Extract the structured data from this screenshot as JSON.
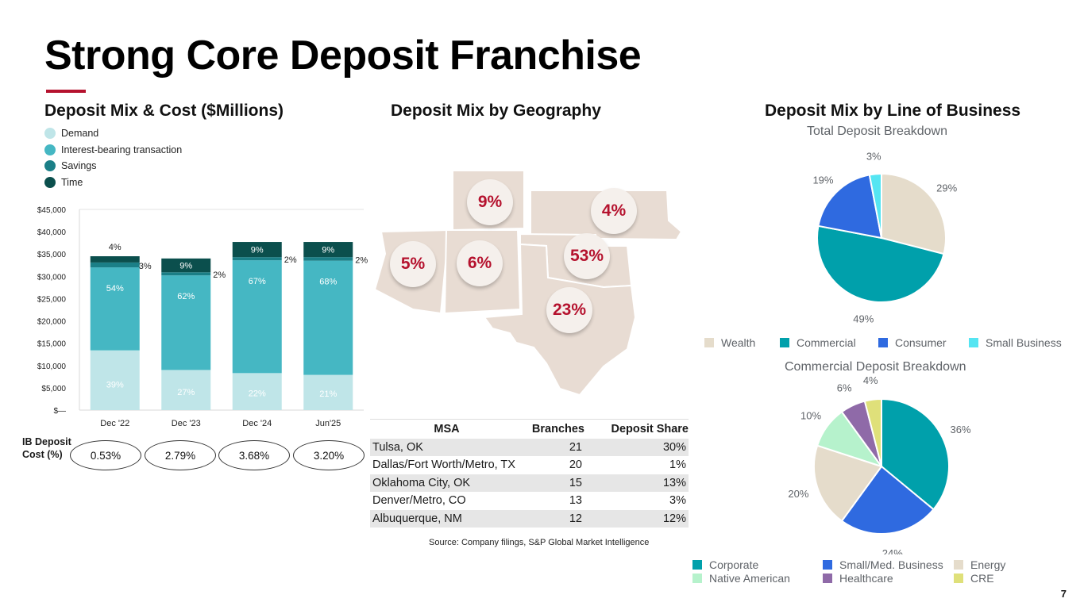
{
  "title": "Strong Core Deposit Franchise",
  "sections": {
    "mix_cost": "Deposit Mix & Cost ($Millions)",
    "geography": "Deposit Mix by Geography",
    "line_of_business": "Deposit Mix by Line of Business"
  },
  "colors": {
    "accent": "#b5122e",
    "demand": "#bfe5e8",
    "interest_bearing": "#45b7c3",
    "savings": "#1b7f87",
    "time": "#0b4f4d",
    "map_fill": "#e8dcd3",
    "wealth": "#e5dccb",
    "commercial": "#00a0ab",
    "consumer": "#2f6ae0",
    "small_business": "#55e5f2",
    "corporate": "#00a0ab",
    "small_med_business": "#2f6ae0",
    "energy": "#e5dccb",
    "native_american": "#b6f2cc",
    "healthcare": "#8f6aa8",
    "cre": "#dfe07a"
  },
  "legend_left": [
    "Demand",
    "Interest-bearing transaction",
    "Savings",
    "Time"
  ],
  "ib_deposit_cost": {
    "label_line1": "IB Deposit",
    "label_line2": "Cost (%)",
    "values": [
      "0.53%",
      "2.79%",
      "3.68%",
      "3.20%"
    ]
  },
  "chart_data": [
    {
      "type": "bar",
      "stacked": true,
      "title": "Deposit Mix & Cost ($Millions)",
      "categories": [
        "Dec '22",
        "Dec '23",
        "Dec '24",
        "Jun'25"
      ],
      "series": [
        {
          "name": "Demand",
          "values": [
            13400,
            9000,
            8300,
            7900
          ],
          "labels": [
            "39%",
            "27%",
            "22%",
            "21%"
          ]
        },
        {
          "name": "Interest-bearing transaction",
          "values": [
            18600,
            21200,
            25300,
            25600
          ],
          "labels": [
            "54%",
            "62%",
            "67%",
            "68%"
          ]
        },
        {
          "name": "Savings",
          "values": [
            1100,
            700,
            700,
            800
          ],
          "labels": [
            "3%",
            "2%",
            "2%",
            "2%"
          ]
        },
        {
          "name": "Time",
          "values": [
            1400,
            3100,
            3400,
            3400
          ],
          "labels": [
            "4%",
            "9%",
            "9%",
            "9%"
          ]
        }
      ],
      "yticks": [
        "$—",
        "$5,000",
        "$10,000",
        "$15,000",
        "$20,000",
        "$25,000",
        "$30,000",
        "$35,000",
        "$40,000",
        "$45,000"
      ],
      "ylim": [
        0,
        45000
      ]
    },
    {
      "type": "pie",
      "title": "Total Deposit Breakdown",
      "labels": [
        "Wealth",
        "Commercial",
        "Consumer",
        "Small Business"
      ],
      "values": [
        29,
        49,
        19,
        3
      ],
      "display": [
        "29%",
        "49%",
        "19%",
        "3%"
      ]
    },
    {
      "type": "pie",
      "title": "Commercial Deposit Breakdown",
      "labels": [
        "Corporate",
        "Small/Med. Business",
        "Energy",
        "Native American",
        "Healthcare",
        "CRE"
      ],
      "values": [
        36,
        24,
        20,
        10,
        6,
        4
      ],
      "display": [
        "36%",
        "24%",
        "20%",
        "10%",
        "6%",
        "4%"
      ]
    }
  ],
  "map_badges": [
    "9%",
    "4%",
    "5%",
    "6%",
    "53%",
    "23%"
  ],
  "msa_table": {
    "headers": [
      "MSA",
      "Branches",
      "Deposit Share"
    ],
    "rows": [
      [
        "Tulsa, OK",
        "21",
        "30%"
      ],
      [
        "Dallas/Fort Worth/Metro, TX",
        "20",
        "1%"
      ],
      [
        "Oklahoma City, OK",
        "15",
        "13%"
      ],
      [
        "Denver/Metro, CO",
        "13",
        "3%"
      ],
      [
        "Albuquerque, NM",
        "12",
        "12%"
      ]
    ]
  },
  "source": "Source: Company filings, S&P Global Market Intelligence",
  "page_number": "7"
}
